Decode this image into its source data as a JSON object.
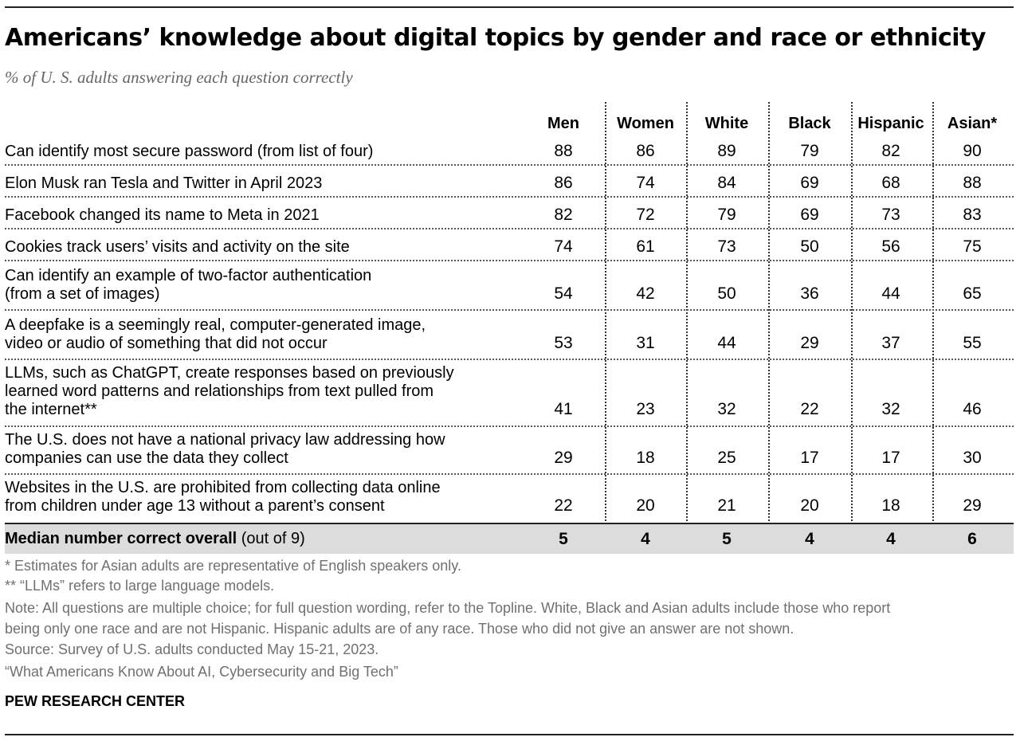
{
  "title": "Americans’ knowledge about digital topics by gender and race or ethnicity",
  "subtitle": "% of U. S. adults answering each question correctly",
  "chart_data": {
    "type": "table",
    "columns": [
      "Men",
      "Women",
      "White",
      "Black",
      "Hispanic",
      "Asian*"
    ],
    "rows": [
      {
        "label_lines": [
          "Can identify most secure password (from list of four)"
        ],
        "values": [
          88,
          86,
          89,
          79,
          82,
          90
        ]
      },
      {
        "label_lines": [
          "Elon Musk ran Tesla and Twitter in April 2023"
        ],
        "values": [
          86,
          74,
          84,
          69,
          68,
          88
        ]
      },
      {
        "label_lines": [
          "Facebook changed its name to Meta in 2021"
        ],
        "values": [
          82,
          72,
          79,
          69,
          73,
          83
        ]
      },
      {
        "label_lines": [
          "Cookies track users’ visits and activity on the site"
        ],
        "values": [
          74,
          61,
          73,
          50,
          56,
          75
        ]
      },
      {
        "label_lines": [
          "Can identify an example of two-factor authentication",
          "(from a set of images)"
        ],
        "values": [
          54,
          42,
          50,
          36,
          44,
          65
        ]
      },
      {
        "label_lines": [
          "A deepfake is a seemingly real, computer-generated image,",
          "video or audio of something that did not occur"
        ],
        "values": [
          53,
          31,
          44,
          29,
          37,
          55
        ]
      },
      {
        "label_lines": [
          "LLMs, such as ChatGPT, create responses based on previously",
          "learned word patterns and relationships from text pulled from",
          "the internet**"
        ],
        "values": [
          41,
          23,
          32,
          22,
          32,
          46
        ]
      },
      {
        "label_lines": [
          "The U.S. does not have a national privacy law addressing how",
          "companies can use the data they collect"
        ],
        "values": [
          29,
          18,
          25,
          17,
          17,
          30
        ]
      },
      {
        "label_lines": [
          "Websites in the U.S. are prohibited from collecting data online",
          "from children under age 13 without a parent’s consent"
        ],
        "values": [
          22,
          20,
          21,
          20,
          18,
          29
        ]
      }
    ],
    "summary": {
      "label_bold": "Median number correct overall",
      "label_rest": "(out of 9)",
      "values": [
        5,
        4,
        5,
        4,
        4,
        6
      ]
    }
  },
  "notes": {
    "asian": "* Estimates for Asian adults are representative of English speakers only.",
    "llms": "** “LLMs” refers to large language models.",
    "note_line1": "Note: All questions are multiple choice; for full question wording, refer to the Topline. White, Black and Asian adults include those who report",
    "note_line2": "being only one race and are not Hispanic. Hispanic adults are of any race. Those who did not give an answer are not shown.",
    "source": "Source: Survey of U.S. adults conducted May 15-21, 2023.",
    "report": "“What Americans Know About AI, Cybersecurity and Big Tech”"
  },
  "credit": "PEW RESEARCH CENTER"
}
